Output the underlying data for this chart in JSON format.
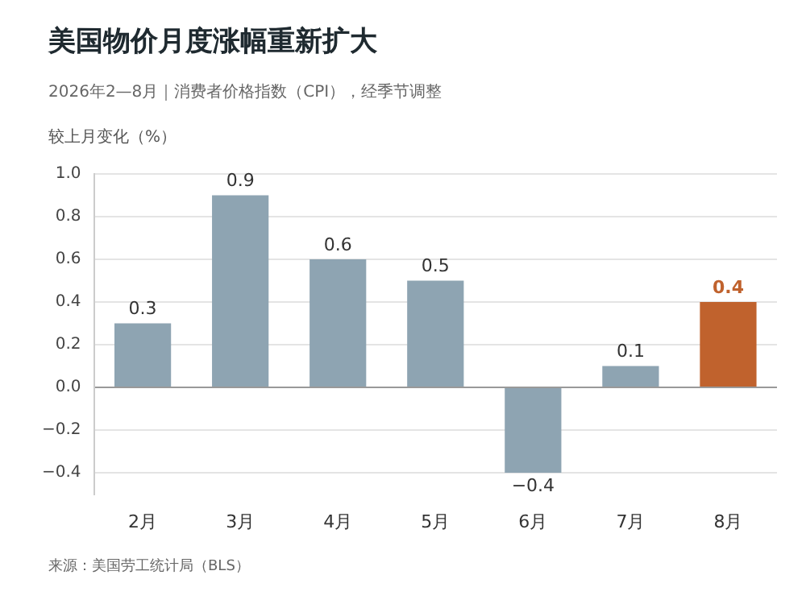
{
  "chart_data": {
    "type": "bar",
    "title": "美国物价月度涨幅重新扩大",
    "subtitle": "2026年2—8月｜消费者价格指数（CPI），经季节调整",
    "ylabel": "较上月变化（%）",
    "annotations": [
      "来源：美国劳工统计局（BLS）"
    ],
    "categories": [
      "2月",
      "3月",
      "4月",
      "5月",
      "6月",
      "7月",
      "8月"
    ],
    "values": [
      0.3,
      0.9,
      0.6,
      0.5,
      -0.4,
      0.1,
      0.4
    ],
    "colors": [
      "#8ea4b2",
      "#8ea4b2",
      "#8ea4b2",
      "#8ea4b2",
      "#8ea4b2",
      "#8ea4b2",
      "#c0622d"
    ],
    "data_labels": true,
    "ylim": [
      -0.5,
      1.0
    ],
    "yticks": [
      {
        "value": -0.4,
        "label": "−0.4"
      },
      {
        "value": -0.2,
        "label": "−0.2"
      },
      {
        "value": 0,
        "label": "0.0"
      },
      0.2,
      0.4,
      0.6,
      0.8,
      {
        "value": 1,
        "label": "1.0"
      }
    ],
    "grid": "y",
    "legend": false
  }
}
